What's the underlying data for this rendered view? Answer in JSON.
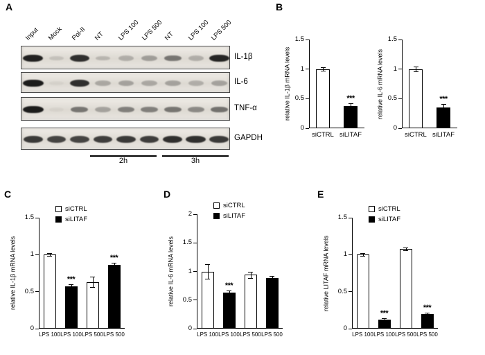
{
  "panels": {
    "A": {
      "label": "A",
      "lane_labels": [
        "Input",
        "Mock",
        "Pol-II",
        "NT",
        "LPS 100",
        "LPS 500",
        "NT",
        "LPS 100",
        "LPS 500"
      ],
      "rows": [
        {
          "name": "IL-1β",
          "bands": [
            0.92,
            0.12,
            0.85,
            0.18,
            0.22,
            0.3,
            0.5,
            0.22,
            0.9
          ]
        },
        {
          "name": "IL-6",
          "bands": [
            0.95,
            0.04,
            0.85,
            0.25,
            0.28,
            0.25,
            0.28,
            0.22,
            0.28
          ]
        },
        {
          "name": "TNF-α",
          "bands": [
            0.95,
            0.04,
            0.5,
            0.28,
            0.45,
            0.45,
            0.5,
            0.4,
            0.52
          ]
        },
        {
          "name": "GAPDH",
          "bands": [
            0.8,
            0.75,
            0.75,
            0.78,
            0.8,
            0.78,
            0.85,
            0.85,
            0.8
          ]
        }
      ],
      "time_groups": [
        "2h",
        "3h"
      ]
    },
    "B": {
      "label": "B"
    },
    "C": {
      "label": "C"
    },
    "D": {
      "label": "D"
    },
    "E": {
      "label": "E"
    }
  },
  "colors": {
    "ctrl_bar": "#ffffff",
    "litaf_bar": "#000000",
    "axis": "#000000"
  },
  "chart_data": [
    {
      "panel": "B",
      "type": "bar",
      "ylabel": "relative IL-1β mRNA levels",
      "categories": [
        "siCTRL",
        "siLITAF"
      ],
      "values": [
        1.0,
        0.37
      ],
      "errors": [
        0.03,
        0.05
      ],
      "bar_colors": [
        "#ffffff",
        "#000000"
      ],
      "annotations": [
        "",
        "***"
      ],
      "ylim": [
        0,
        1.5
      ],
      "yticks": [
        "0",
        "0.5",
        "1",
        "1.5"
      ]
    },
    {
      "panel": "B",
      "type": "bar",
      "ylabel": "relative IL-6 mRNA levels",
      "categories": [
        "siCTRL",
        "siLITAF"
      ],
      "values": [
        1.0,
        0.35
      ],
      "errors": [
        0.04,
        0.06
      ],
      "bar_colors": [
        "#ffffff",
        "#000000"
      ],
      "annotations": [
        "",
        "***"
      ],
      "ylim": [
        0,
        1.5
      ],
      "yticks": [
        "0",
        "0.5",
        "1",
        "1.5"
      ]
    },
    {
      "panel": "C",
      "type": "bar",
      "ylabel": "relative IL-1β mRNA levels",
      "categories": [
        "LPS 100",
        "LPS 100",
        "LPS 500",
        "LPS 500"
      ],
      "values": [
        1.0,
        0.57,
        0.63,
        0.86
      ],
      "errors": [
        0.02,
        0.03,
        0.07,
        0.03
      ],
      "bar_colors": [
        "#ffffff",
        "#000000",
        "#ffffff",
        "#000000"
      ],
      "annotations": [
        "",
        "***",
        "",
        "***"
      ],
      "ylim": [
        0,
        1.5
      ],
      "yticks": [
        "0",
        "0.5",
        "1",
        "1.5"
      ],
      "legend": [
        {
          "label": "siCTRL",
          "color": "#ffffff"
        },
        {
          "label": "siLITAF",
          "color": "#000000"
        }
      ]
    },
    {
      "panel": "D",
      "type": "bar",
      "ylabel": "relative IL-6 mRNA levels",
      "categories": [
        "LPS 100",
        "LPS 100",
        "LPS 500",
        "LPS 500"
      ],
      "values": [
        1.0,
        0.63,
        0.94,
        0.88
      ],
      "errors": [
        0.13,
        0.04,
        0.06,
        0.04
      ],
      "bar_colors": [
        "#ffffff",
        "#000000",
        "#ffffff",
        "#000000"
      ],
      "annotations": [
        "",
        "***",
        "",
        ""
      ],
      "ylim": [
        0,
        2
      ],
      "yticks": [
        "0",
        "0.5",
        "1",
        "1.5",
        "2"
      ],
      "legend": [
        {
          "label": "siCTRL",
          "color": "#ffffff"
        },
        {
          "label": "siLITAF",
          "color": "#000000"
        }
      ]
    },
    {
      "panel": "E",
      "type": "bar",
      "ylabel": "relative LITAF mRNA levels",
      "categories": [
        "LPS 100",
        "LPS 100",
        "LPS 500",
        "LPS 500"
      ],
      "values": [
        1.0,
        0.12,
        1.08,
        0.2
      ],
      "errors": [
        0.02,
        0.02,
        0.02,
        0.02
      ],
      "bar_colors": [
        "#ffffff",
        "#000000",
        "#ffffff",
        "#000000"
      ],
      "annotations": [
        "",
        "***",
        "",
        "***"
      ],
      "ylim": [
        0,
        1.5
      ],
      "yticks": [
        "0",
        "0.5",
        "1",
        "1.5"
      ],
      "legend": [
        {
          "label": "siCTRL",
          "color": "#ffffff"
        },
        {
          "label": "siLITAF",
          "color": "#000000"
        }
      ]
    }
  ]
}
